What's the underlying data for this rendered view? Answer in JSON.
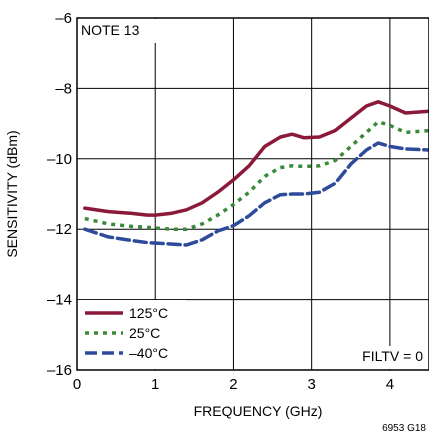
{
  "chart_data": {
    "type": "line",
    "xlabel": "FREQUENCY (GHz)",
    "ylabel": "SENSITIVITY (dBm)",
    "xlim": [
      0,
      4.5
    ],
    "ylim": [
      -16,
      -6
    ],
    "x_ticks": [
      "0",
      "1",
      "2",
      "3",
      "4"
    ],
    "y_ticks": [
      "–16",
      "–14",
      "–12",
      "–10",
      "–8",
      "–6"
    ],
    "grid": true,
    "legend_position": "bottom-left",
    "annotations": {
      "note": "NOTE 13",
      "condition": "FILTV = 0",
      "figure_id": "6953 G18"
    },
    "series": [
      {
        "name": "125°C",
        "color": "#8b1a3a",
        "style": "solid",
        "x": [
          0.1,
          0.4,
          0.7,
          0.9,
          1.0,
          1.2,
          1.4,
          1.6,
          1.8,
          2.0,
          2.2,
          2.4,
          2.6,
          2.75,
          2.9,
          3.1,
          3.3,
          3.5,
          3.7,
          3.85,
          4.0,
          4.2,
          4.5
        ],
        "y": [
          -11.4,
          -11.5,
          -11.55,
          -11.6,
          -11.6,
          -11.55,
          -11.45,
          -11.25,
          -10.95,
          -10.6,
          -10.2,
          -9.65,
          -9.38,
          -9.3,
          -9.4,
          -9.38,
          -9.2,
          -8.85,
          -8.5,
          -8.38,
          -8.5,
          -8.7,
          -8.65
        ]
      },
      {
        "name": "25°C",
        "color": "#3a8a3a",
        "style": "dotted",
        "x": [
          0.1,
          0.4,
          0.7,
          0.9,
          1.2,
          1.4,
          1.6,
          1.8,
          2.0,
          2.2,
          2.4,
          2.6,
          2.75,
          2.9,
          3.1,
          3.3,
          3.5,
          3.7,
          3.85,
          4.0,
          4.2,
          4.5
        ],
        "y": [
          -11.7,
          -11.85,
          -11.92,
          -11.95,
          -12.0,
          -12.0,
          -11.85,
          -11.6,
          -11.3,
          -10.95,
          -10.5,
          -10.25,
          -10.2,
          -10.22,
          -10.2,
          -10.05,
          -9.65,
          -9.25,
          -8.95,
          -9.05,
          -9.25,
          -9.2
        ]
      },
      {
        "name": "–40°C",
        "color": "#2e4a9a",
        "style": "dashed",
        "x": [
          0.1,
          0.4,
          0.7,
          0.9,
          1.2,
          1.4,
          1.6,
          1.8,
          2.0,
          2.2,
          2.4,
          2.6,
          2.75,
          2.9,
          3.1,
          3.3,
          3.5,
          3.7,
          3.85,
          4.0,
          4.2,
          4.5
        ],
        "y": [
          -12.0,
          -12.22,
          -12.32,
          -12.38,
          -12.42,
          -12.45,
          -12.3,
          -12.05,
          -11.9,
          -11.62,
          -11.25,
          -11.02,
          -11.0,
          -11.0,
          -10.95,
          -10.7,
          -10.15,
          -9.75,
          -9.55,
          -9.65,
          -9.72,
          -9.75
        ]
      }
    ]
  }
}
